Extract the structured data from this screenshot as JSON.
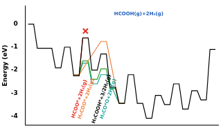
{
  "chart_data": {
    "type": "line",
    "y_label": "Energy (eV)",
    "categories": [
      null,
      null,
      null,
      null,
      null,
      null,
      null,
      null,
      null,
      null,
      null,
      null,
      null,
      null,
      null,
      null,
      null,
      null,
      null,
      null,
      null
    ],
    "ylim": [
      -4.4,
      0.8
    ],
    "yticks": [
      0,
      -1,
      -2,
      -3,
      -4
    ],
    "tick_labels": "y",
    "grid": false,
    "series": [
      {
        "color": "#000000",
        "line_style": "solid",
        "marker": "none",
        "values": [
          0,
          -1.05,
          -1.05,
          -1.9,
          -1.0,
          -2.25,
          -0.6,
          -2.0,
          -1.3,
          -2.75,
          -3.45,
          -2.2,
          -3.45,
          -4.1,
          -3.1,
          -3.5,
          -2.6,
          -3.7,
          -2.9,
          -3.3,
          -1.1
        ]
      },
      {
        "color": "#e8271f",
        "line_style": "solid",
        "marker": "none",
        "values": [
          null,
          null,
          null,
          null,
          null,
          -2.25,
          -0.6,
          null,
          null,
          null,
          null,
          null,
          null,
          null,
          null,
          null,
          null,
          null,
          null,
          null,
          null
        ]
      },
      {
        "color": "#f07f3c",
        "line_style": "solid",
        "marker": "none",
        "values": [
          null,
          null,
          null,
          null,
          null,
          -2.2,
          null,
          null,
          -0.75,
          null,
          -3.45,
          null,
          null,
          null,
          null,
          null,
          null,
          null,
          null,
          null,
          null
        ]
      },
      {
        "color": "#2ca02c",
        "line_style": "solid",
        "marker": "none",
        "values": [
          null,
          null,
          null,
          null,
          null,
          -2.2,
          -1.6,
          -2.4,
          -1.95,
          -2.8,
          -3.45,
          null,
          null,
          null,
          null,
          null,
          null,
          null,
          null,
          null,
          null
        ]
      },
      {
        "color": "#1aa39a",
        "line_style": "solid",
        "marker": "none",
        "values": [
          null,
          null,
          null,
          null,
          null,
          -2.2,
          -1.7,
          -2.6,
          -2.2,
          null,
          -3.45,
          null,
          null,
          null,
          null,
          null,
          null,
          null,
          null,
          null,
          null
        ]
      },
      {
        "color": "#e8271f",
        "line_style": "none",
        "marker": "cross",
        "values": [
          null,
          null,
          null,
          null,
          null,
          null,
          -0.3,
          null,
          null,
          null,
          null,
          null,
          null,
          null,
          null,
          null,
          null,
          null,
          null,
          null,
          null
        ]
      }
    ],
    "annotations": [
      {
        "text": "HCOOH(g)+2H₂(g)",
        "color": "#1f5fbf"
      },
      {
        "text": "HCOO*+2H₂(g)",
        "color": "#e8271f"
      },
      {
        "text": "H₂COO*+2H₂(g)",
        "color": "#f07f3c"
      },
      {
        "text": "H₂COOH*+3/2H₂(g)",
        "color": "#000000"
      },
      {
        "text": "H₂CO*O+2H₂(g)",
        "color": "#1aa39a"
      }
    ]
  }
}
